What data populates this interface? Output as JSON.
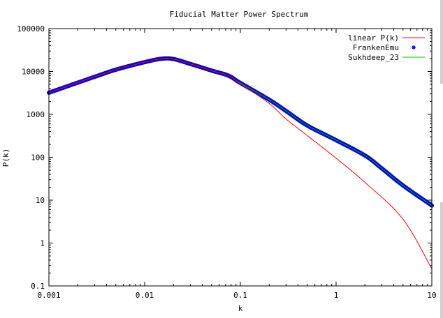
{
  "chart_data": {
    "type": "line",
    "title": "Fiducial Matter Power Spectrum",
    "xlabel": "k",
    "ylabel": "P(k)",
    "xscale": "log",
    "yscale": "log",
    "xlim": [
      0.001,
      10
    ],
    "ylim": [
      0.1,
      100000
    ],
    "grid": false,
    "legend_position": "top-right",
    "x_ticks": [
      {
        "value": 0.001,
        "label": "0.001"
      },
      {
        "value": 0.01,
        "label": "0.01"
      },
      {
        "value": 0.1,
        "label": "0.1"
      },
      {
        "value": 1,
        "label": "1"
      },
      {
        "value": 10,
        "label": "10"
      }
    ],
    "y_ticks": [
      {
        "value": 0.1,
        "label": "0.1"
      },
      {
        "value": 1,
        "label": "1"
      },
      {
        "value": 10,
        "label": "10"
      },
      {
        "value": 100,
        "label": "100"
      },
      {
        "value": 1000,
        "label": "1000"
      },
      {
        "value": 10000,
        "label": "10000"
      },
      {
        "value": 100000,
        "label": "100000"
      }
    ],
    "series": [
      {
        "name": "linear P(k)",
        "color": "#ff0000",
        "style": "line",
        "x": [
          0.001,
          0.003,
          0.005,
          0.01,
          0.015,
          0.02,
          0.03,
          0.05,
          0.075,
          0.1,
          0.2,
          0.3,
          0.5,
          1,
          2,
          5,
          10
        ],
        "y": [
          3200,
          7500,
          11000,
          16500,
          19800,
          19500,
          15000,
          10500,
          8000,
          5200,
          1800,
          780,
          320,
          95,
          26,
          3.6,
          0.25
        ]
      },
      {
        "name": "FrankenEmu",
        "color": "#0000ff",
        "style": "points",
        "x": [
          0.001,
          0.003,
          0.005,
          0.01,
          0.015,
          0.02,
          0.03,
          0.05,
          0.075,
          0.1,
          0.2,
          0.3,
          0.5,
          1,
          2,
          3,
          5,
          10
        ],
        "y": [
          3200,
          7500,
          11000,
          16500,
          19800,
          19500,
          15000,
          10500,
          8000,
          5400,
          2200,
          1200,
          550,
          250,
          110,
          55,
          22,
          7.5
        ]
      },
      {
        "name": "Sukhdeep_23",
        "color": "#00c000",
        "style": "line",
        "x": [
          0.001,
          0.003,
          0.005,
          0.01,
          0.015,
          0.02,
          0.03,
          0.05,
          0.075,
          0.1,
          0.2,
          0.3,
          0.5,
          1,
          2,
          3,
          5,
          10
        ],
        "y": [
          3200,
          7500,
          11000,
          16500,
          19800,
          19500,
          15000,
          10500,
          8000,
          5400,
          2200,
          1200,
          550,
          250,
          110,
          55,
          22,
          7.5
        ]
      }
    ]
  }
}
